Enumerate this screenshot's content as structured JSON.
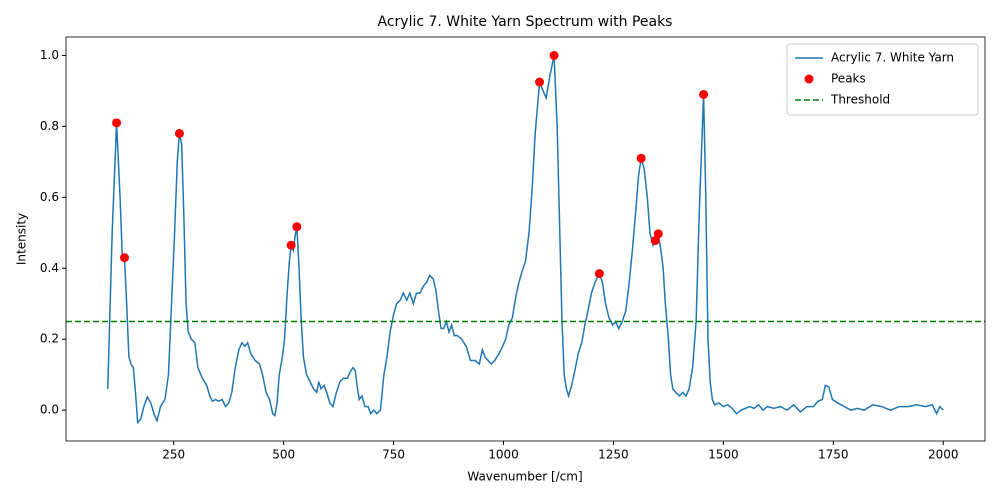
{
  "chart_data": {
    "type": "line",
    "title": "Acrylic 7. White Yarn Spectrum with Peaks",
    "x_label": "Wavenumber [/cm]",
    "y_label": "Intensity",
    "xlim": [
      5,
      2095
    ],
    "ylim": [
      -0.087,
      1.052
    ],
    "xticks": [
      250,
      500,
      750,
      1000,
      1250,
      1500,
      1750,
      2000
    ],
    "yticks": [
      {
        "value": 0,
        "label": "0.0"
      },
      0.2,
      0.4,
      0.6,
      0.8,
      {
        "value": 1,
        "label": "1.0"
      }
    ],
    "legend": "upper right",
    "series": [
      {
        "name": "Acrylic 7. White Yarn",
        "type": "line",
        "color": "#1f77b4",
        "x": [
          100,
          110,
          120,
          128,
          133,
          138,
          143,
          148,
          153,
          158,
          163,
          168,
          175,
          182,
          190,
          198,
          205,
          212,
          220,
          230,
          238,
          245,
          252,
          258,
          263,
          268,
          273,
          278,
          283,
          290,
          298,
          305,
          315,
          325,
          332,
          338,
          345,
          352,
          360,
          368,
          375,
          382,
          390,
          398,
          405,
          412,
          418,
          425,
          435,
          445,
          452,
          460,
          468,
          475,
          480,
          485,
          490,
          497,
          502,
          508,
          513,
          517,
          522,
          526,
          530,
          535,
          540,
          545,
          552,
          560,
          568,
          575,
          580,
          585,
          592,
          598,
          605,
          612,
          620,
          628,
          636,
          645,
          652,
          658,
          663,
          668,
          672,
          678,
          685,
          692,
          698,
          705,
          712,
          720,
          728,
          735,
          742,
          750,
          757,
          765,
          772,
          780,
          787,
          795,
          802,
          810,
          818,
          825,
          832,
          840,
          846,
          852,
          858,
          864,
          870,
          876,
          882,
          888,
          895,
          905,
          915,
          925,
          935,
          945,
          952,
          958,
          965,
          972,
          980,
          990,
          998,
          1005,
          1012,
          1020,
          1028,
          1035,
          1042,
          1050,
          1058,
          1065,
          1072,
          1082,
          1090,
          1097,
          1105,
          1115,
          1122,
          1128,
          1133,
          1138,
          1143,
          1148,
          1155,
          1162,
          1170,
          1178,
          1185,
          1192,
          1200,
          1208,
          1218,
          1225,
          1232,
          1240,
          1248,
          1255,
          1262,
          1270,
          1278,
          1285,
          1293,
          1300,
          1307,
          1313,
          1320,
          1327,
          1333,
          1340,
          1345,
          1352,
          1358,
          1363,
          1368,
          1375,
          1380,
          1385,
          1392,
          1400,
          1408,
          1415,
          1422,
          1430,
          1438,
          1445,
          1455,
          1460,
          1465,
          1470,
          1475,
          1480,
          1490,
          1500,
          1510,
          1520,
          1530,
          1540,
          1550,
          1560,
          1570,
          1580,
          1590,
          1600,
          1615,
          1630,
          1645,
          1660,
          1675,
          1690,
          1705,
          1715,
          1725,
          1732,
          1740,
          1748,
          1760,
          1775,
          1790,
          1805,
          1820,
          1840,
          1860,
          1880,
          1900,
          1920,
          1940,
          1960,
          1975,
          1985,
          1992,
          2000
        ],
        "values": [
          0.06,
          0.5,
          0.81,
          0.6,
          0.43,
          0.43,
          0.3,
          0.15,
          0.13,
          0.12,
          0.05,
          -0.035,
          -0.025,
          0.01,
          0.037,
          0.02,
          -0.01,
          -0.03,
          0.01,
          0.03,
          0.1,
          0.3,
          0.5,
          0.7,
          0.78,
          0.75,
          0.55,
          0.3,
          0.22,
          0.2,
          0.19,
          0.12,
          0.09,
          0.07,
          0.04,
          0.025,
          0.03,
          0.025,
          0.03,
          0.01,
          0.02,
          0.05,
          0.12,
          0.17,
          0.19,
          0.18,
          0.19,
          0.16,
          0.14,
          0.13,
          0.1,
          0.05,
          0.03,
          -0.01,
          -0.015,
          0.02,
          0.1,
          0.15,
          0.2,
          0.33,
          0.42,
          0.465,
          0.45,
          0.49,
          0.517,
          0.4,
          0.25,
          0.15,
          0.1,
          0.08,
          0.06,
          0.05,
          0.08,
          0.06,
          0.07,
          0.05,
          0.02,
          0.01,
          0.05,
          0.08,
          0.09,
          0.09,
          0.11,
          0.12,
          0.11,
          0.06,
          0.03,
          0.04,
          0.01,
          0.01,
          -0.01,
          0.0,
          -0.01,
          0.0,
          0.1,
          0.15,
          0.22,
          0.27,
          0.3,
          0.31,
          0.33,
          0.31,
          0.33,
          0.3,
          0.33,
          0.33,
          0.35,
          0.36,
          0.38,
          0.37,
          0.34,
          0.28,
          0.23,
          0.23,
          0.25,
          0.22,
          0.24,
          0.21,
          0.21,
          0.2,
          0.18,
          0.14,
          0.14,
          0.13,
          0.17,
          0.15,
          0.14,
          0.13,
          0.14,
          0.16,
          0.18,
          0.2,
          0.24,
          0.26,
          0.32,
          0.36,
          0.39,
          0.42,
          0.5,
          0.62,
          0.78,
          0.925,
          0.9,
          0.88,
          0.94,
          1.0,
          0.8,
          0.5,
          0.25,
          0.1,
          0.06,
          0.04,
          0.07,
          0.11,
          0.16,
          0.19,
          0.24,
          0.28,
          0.33,
          0.36,
          0.385,
          0.36,
          0.3,
          0.26,
          0.24,
          0.25,
          0.23,
          0.25,
          0.28,
          0.35,
          0.45,
          0.55,
          0.66,
          0.71,
          0.68,
          0.6,
          0.5,
          0.465,
          0.478,
          0.497,
          0.45,
          0.4,
          0.3,
          0.2,
          0.1,
          0.06,
          0.05,
          0.04,
          0.05,
          0.04,
          0.06,
          0.12,
          0.25,
          0.55,
          0.89,
          0.6,
          0.2,
          0.08,
          0.03,
          0.015,
          0.02,
          0.01,
          0.015,
          0.005,
          -0.01,
          0.0,
          0.005,
          0.01,
          0.005,
          0.015,
          0.0,
          0.01,
          0.005,
          0.01,
          0.0,
          0.015,
          -0.005,
          0.01,
          0.01,
          0.025,
          0.03,
          0.07,
          0.065,
          0.03,
          0.02,
          0.01,
          0.0,
          0.005,
          0.0,
          0.015,
          0.01,
          0.0,
          0.01,
          0.01,
          0.015,
          0.01,
          0.015,
          -0.01,
          0.01,
          0.0
        ]
      },
      {
        "name": "Peaks",
        "type": "scatter",
        "color": "red",
        "x": [
          120,
          138,
          263,
          517,
          530,
          1082,
          1115,
          1218,
          1313,
          1345,
          1352,
          1455
        ],
        "values": [
          0.81,
          0.43,
          0.78,
          0.465,
          0.517,
          0.925,
          1.0,
          0.385,
          0.71,
          0.478,
          0.497,
          0.89
        ]
      }
    ],
    "threshold": {
      "name": "Threshold",
      "value": 0.25,
      "color": "green",
      "style": "dashed"
    }
  }
}
